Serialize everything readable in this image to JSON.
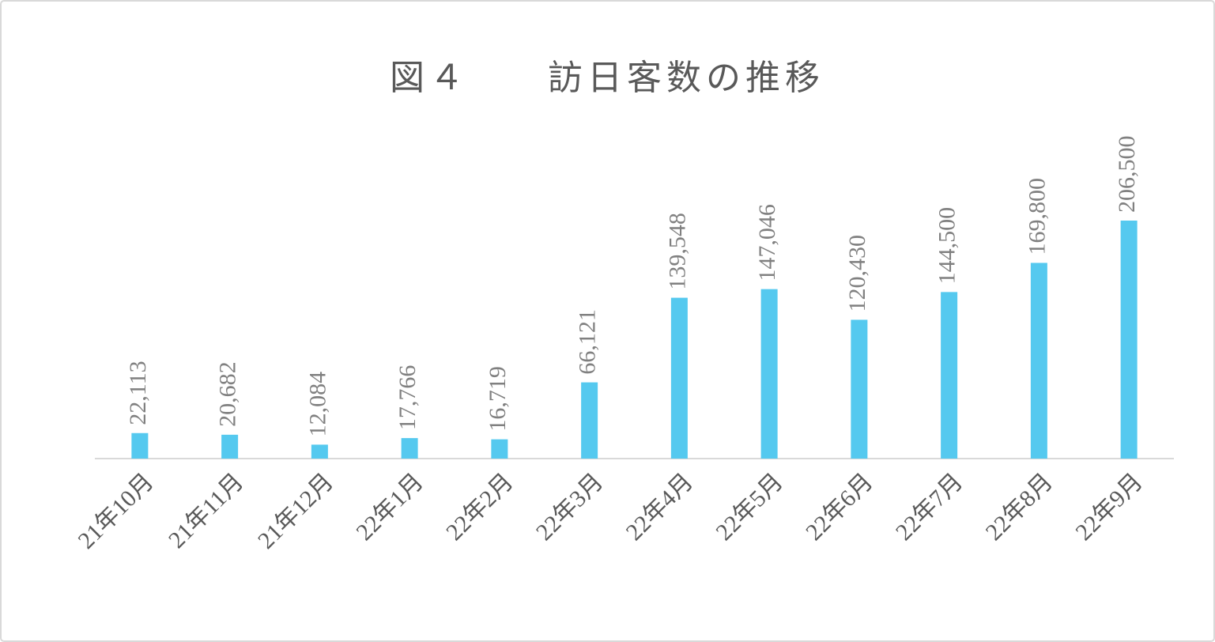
{
  "chart_data": {
    "type": "bar",
    "title": "図４　　訪日客数の推移",
    "categories": [
      "21年10月",
      "21年11月",
      "21年12月",
      "22年1月",
      "22年2月",
      "22年3月",
      "22年4月",
      "22年5月",
      "22年6月",
      "22年7月",
      "22年8月",
      "22年9月"
    ],
    "values": [
      22113,
      20682,
      12084,
      17766,
      16719,
      66121,
      139548,
      147046,
      120430,
      144500,
      169800,
      206500
    ],
    "value_labels": [
      "22,113",
      "20,682",
      "12,084",
      "17,766",
      "16,719",
      "66,121",
      "139,548",
      "147,046",
      "120,430",
      "144,500",
      "169,800",
      "206,500"
    ],
    "color": "#55c9ef"
  }
}
